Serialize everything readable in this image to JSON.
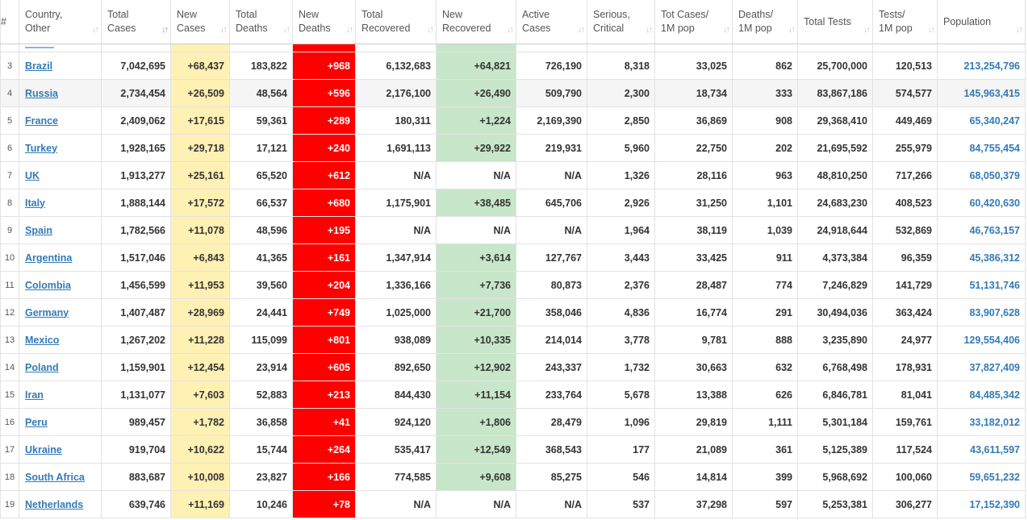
{
  "columns": [
    {
      "key": "rank",
      "label": "#"
    },
    {
      "key": "country",
      "label": "Country, Other"
    },
    {
      "key": "total_cases",
      "label": "Total Cases"
    },
    {
      "key": "new_cases",
      "label": "New Cases"
    },
    {
      "key": "total_deaths",
      "label": "Total Deaths"
    },
    {
      "key": "new_deaths",
      "label": "New Deaths"
    },
    {
      "key": "total_recovered",
      "label": "Total Recovered"
    },
    {
      "key": "new_recovered",
      "label": "New Recovered"
    },
    {
      "key": "active_cases",
      "label": "Active Cases"
    },
    {
      "key": "serious_critical",
      "label": "Serious, Critical"
    },
    {
      "key": "cases_per_1m",
      "label": "Tot Cases/ 1M pop"
    },
    {
      "key": "deaths_per_1m",
      "label": "Deaths/ 1M pop"
    },
    {
      "key": "total_tests",
      "label": "Total Tests"
    },
    {
      "key": "tests_per_1m",
      "label": "Tests/ 1M pop"
    },
    {
      "key": "population",
      "label": "Population"
    }
  ],
  "sort_icon": "↓↑",
  "rows": [
    [
      "3",
      "Brazil",
      "7,042,695",
      "+68,437",
      "183,822",
      "+968",
      "6,132,683",
      "+64,821",
      "726,190",
      "8,318",
      "33,025",
      "862",
      "25,700,000",
      "120,513",
      "213,254,796"
    ],
    [
      "4",
      "Russia",
      "2,734,454",
      "+26,509",
      "48,564",
      "+596",
      "2,176,100",
      "+26,490",
      "509,790",
      "2,300",
      "18,734",
      "333",
      "83,867,186",
      "574,577",
      "145,963,415"
    ],
    [
      "5",
      "France",
      "2,409,062",
      "+17,615",
      "59,361",
      "+289",
      "180,311",
      "+1,224",
      "2,169,390",
      "2,850",
      "36,869",
      "908",
      "29,368,410",
      "449,469",
      "65,340,247"
    ],
    [
      "6",
      "Turkey",
      "1,928,165",
      "+29,718",
      "17,121",
      "+240",
      "1,691,113",
      "+29,922",
      "219,931",
      "5,960",
      "22,750",
      "202",
      "21,695,592",
      "255,979",
      "84,755,454"
    ],
    [
      "7",
      "UK",
      "1,913,277",
      "+25,161",
      "65,520",
      "+612",
      "N/A",
      "N/A",
      "N/A",
      "1,326",
      "28,116",
      "963",
      "48,810,250",
      "717,266",
      "68,050,379"
    ],
    [
      "8",
      "Italy",
      "1,888,144",
      "+17,572",
      "66,537",
      "+680",
      "1,175,901",
      "+38,485",
      "645,706",
      "2,926",
      "31,250",
      "1,101",
      "24,683,230",
      "408,523",
      "60,420,630"
    ],
    [
      "9",
      "Spain",
      "1,782,566",
      "+11,078",
      "48,596",
      "+195",
      "N/A",
      "N/A",
      "N/A",
      "1,964",
      "38,119",
      "1,039",
      "24,918,644",
      "532,869",
      "46,763,157"
    ],
    [
      "10",
      "Argentina",
      "1,517,046",
      "+6,843",
      "41,365",
      "+161",
      "1,347,914",
      "+3,614",
      "127,767",
      "3,443",
      "33,425",
      "911",
      "4,373,384",
      "96,359",
      "45,386,312"
    ],
    [
      "11",
      "Colombia",
      "1,456,599",
      "+11,953",
      "39,560",
      "+204",
      "1,336,166",
      "+7,736",
      "80,873",
      "2,376",
      "28,487",
      "774",
      "7,246,829",
      "141,729",
      "51,131,746"
    ],
    [
      "12",
      "Germany",
      "1,407,487",
      "+28,969",
      "24,441",
      "+749",
      "1,025,000",
      "+21,700",
      "358,046",
      "4,836",
      "16,774",
      "291",
      "30,494,036",
      "363,424",
      "83,907,628"
    ],
    [
      "13",
      "Mexico",
      "1,267,202",
      "+11,228",
      "115,099",
      "+801",
      "938,089",
      "+10,335",
      "214,014",
      "3,778",
      "9,781",
      "888",
      "3,235,890",
      "24,977",
      "129,554,406"
    ],
    [
      "14",
      "Poland",
      "1,159,901",
      "+12,454",
      "23,914",
      "+605",
      "892,650",
      "+12,902",
      "243,337",
      "1,732",
      "30,663",
      "632",
      "6,768,498",
      "178,931",
      "37,827,409"
    ],
    [
      "15",
      "Iran",
      "1,131,077",
      "+7,603",
      "52,883",
      "+213",
      "844,430",
      "+11,154",
      "233,764",
      "5,678",
      "13,388",
      "626",
      "6,846,781",
      "81,041",
      "84,485,342"
    ],
    [
      "16",
      "Peru",
      "989,457",
      "+1,782",
      "36,858",
      "+41",
      "924,120",
      "+1,806",
      "28,479",
      "1,096",
      "29,819",
      "1,111",
      "5,301,184",
      "159,761",
      "33,182,012"
    ],
    [
      "17",
      "Ukraine",
      "919,704",
      "+10,622",
      "15,744",
      "+264",
      "535,417",
      "+12,549",
      "368,543",
      "177",
      "21,089",
      "361",
      "5,125,389",
      "117,524",
      "43,611,597"
    ],
    [
      "18",
      "South Africa",
      "883,687",
      "+10,008",
      "23,827",
      "+166",
      "774,585",
      "+9,608",
      "85,275",
      "546",
      "14,814",
      "399",
      "5,968,692",
      "100,060",
      "59,651,232"
    ],
    [
      "19",
      "Netherlands",
      "639,746",
      "+11,169",
      "10,246",
      "+78",
      "N/A",
      "N/A",
      "N/A",
      "537",
      "37,298",
      "597",
      "5,253,381",
      "306,277",
      "17,152,390"
    ]
  ]
}
